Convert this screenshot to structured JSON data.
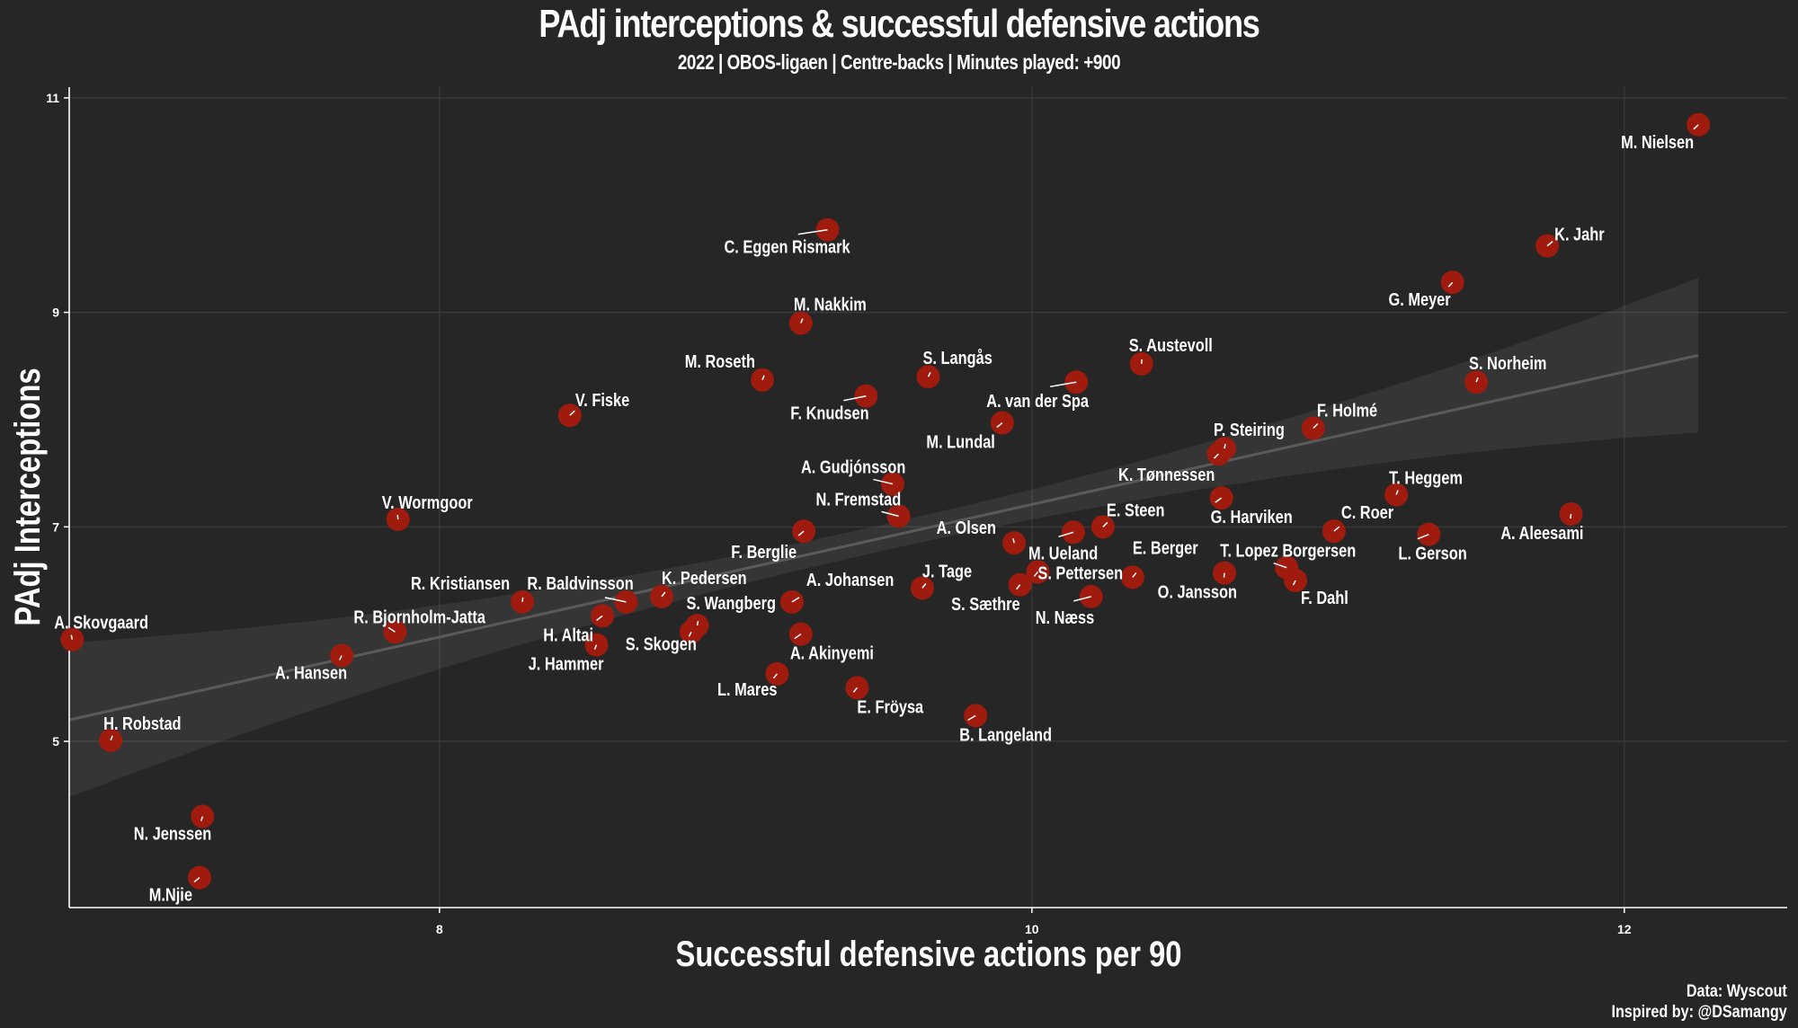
{
  "chart_data": {
    "type": "scatter",
    "title": "PAdj interceptions & successful defensive actions",
    "subtitle": "2022 | OBOS-ligaen | Centre-backs | Minutes played: +900",
    "xlabel": "Successful defensive actions per 90",
    "ylabel": "PAdj Interceptions",
    "xlim": [
      6.75,
      12.55
    ],
    "ylim": [
      3.45,
      11.1
    ],
    "x_ticks": [
      8,
      10,
      12
    ],
    "y_ticks": [
      5,
      7,
      9,
      11
    ],
    "grid": true,
    "marker_color": "#9e1b0e",
    "trendline": {
      "x": [
        6.75,
        12.25
      ],
      "y": [
        5.2,
        8.6
      ]
    },
    "points": [
      {
        "name": "M. Nielsen",
        "x": 12.25,
        "y": 10.75
      },
      {
        "name": "K. Jahr",
        "x": 11.74,
        "y": 9.62
      },
      {
        "name": "G. Meyer",
        "x": 11.42,
        "y": 9.28
      },
      {
        "name": "S. Norheim",
        "x": 11.5,
        "y": 8.35
      },
      {
        "name": "S. Austevoll",
        "x": 10.37,
        "y": 8.52
      },
      {
        "name": "A. van der Spa",
        "x": 10.15,
        "y": 8.35
      },
      {
        "name": "M. Lundal",
        "x": 9.9,
        "y": 7.97
      },
      {
        "name": "S. Langås",
        "x": 9.65,
        "y": 8.4
      },
      {
        "name": "F. Knudsen",
        "x": 9.44,
        "y": 8.22
      },
      {
        "name": "M. Roseth",
        "x": 9.09,
        "y": 8.37
      },
      {
        "name": "M. Nakkim",
        "x": 9.22,
        "y": 8.9
      },
      {
        "name": "C. Eggen Rismark",
        "x": 9.31,
        "y": 9.77
      },
      {
        "name": "V. Fiske",
        "x": 8.44,
        "y": 8.04
      },
      {
        "name": "P. Steiring",
        "x": 10.65,
        "y": 7.73
      },
      {
        "name": "F. Holmé",
        "x": 10.95,
        "y": 7.92
      },
      {
        "name": "K. Tønnessen",
        "x": 10.63,
        "y": 7.68
      },
      {
        "name": "T. Heggem",
        "x": 11.23,
        "y": 7.3
      },
      {
        "name": "A. Aleesami",
        "x": 11.82,
        "y": 7.12
      },
      {
        "name": "C. Roer",
        "x": 11.02,
        "y": 6.96
      },
      {
        "name": "L. Gerson",
        "x": 11.34,
        "y": 6.93
      },
      {
        "name": "G. Harviken",
        "x": 10.64,
        "y": 7.27
      },
      {
        "name": "T. Lopez Borgersen",
        "x": 10.86,
        "y": 6.62
      },
      {
        "name": "F. Dahl",
        "x": 10.89,
        "y": 6.5
      },
      {
        "name": "O. Jansson",
        "x": 10.65,
        "y": 6.57
      },
      {
        "name": "E. Steen",
        "x": 10.24,
        "y": 7.0
      },
      {
        "name": "M. Ueland",
        "x": 10.14,
        "y": 6.95
      },
      {
        "name": "E. Berger",
        "x": 10.34,
        "y": 6.53
      },
      {
        "name": "N. Næss",
        "x": 10.2,
        "y": 6.35
      },
      {
        "name": "S. Pettersen",
        "x": 10.02,
        "y": 6.58
      },
      {
        "name": "S. Sæthre",
        "x": 9.96,
        "y": 6.46
      },
      {
        "name": "A. Olsen",
        "x": 9.94,
        "y": 6.85
      },
      {
        "name": "J. Tage",
        "x": 9.63,
        "y": 6.43
      },
      {
        "name": "A. Gudjónsson",
        "x": 9.53,
        "y": 7.4
      },
      {
        "name": "N. Fremstad",
        "x": 9.55,
        "y": 7.1
      },
      {
        "name": "F. Berglie",
        "x": 9.23,
        "y": 6.96
      },
      {
        "name": "A. Johansen",
        "x": 9.19,
        "y": 6.3
      },
      {
        "name": "A. Akinyemi",
        "x": 9.22,
        "y": 6.0
      },
      {
        "name": "E. Fröysa",
        "x": 9.41,
        "y": 5.5
      },
      {
        "name": "B. Langeland",
        "x": 9.81,
        "y": 5.24
      },
      {
        "name": "L. Mares",
        "x": 9.14,
        "y": 5.63
      },
      {
        "name": "S. Wangberg",
        "x": 8.87,
        "y": 6.08
      },
      {
        "name": "S. Skogen",
        "x": 8.85,
        "y": 6.02
      },
      {
        "name": "K. Pedersen",
        "x": 8.75,
        "y": 6.35
      },
      {
        "name": "R. Baldvinsson",
        "x": 8.63,
        "y": 6.3
      },
      {
        "name": "R. Kristiansen",
        "x": 8.28,
        "y": 6.3
      },
      {
        "name": "H. Altai",
        "x": 8.55,
        "y": 6.17
      },
      {
        "name": "J. Hammer",
        "x": 8.53,
        "y": 5.9
      },
      {
        "name": "R. Bjornholm-Jatta",
        "x": 7.85,
        "y": 6.02
      },
      {
        "name": "V. Wormgoor",
        "x": 7.86,
        "y": 7.07
      },
      {
        "name": "A. Hansen",
        "x": 7.67,
        "y": 5.8
      },
      {
        "name": "A. Skovgaard",
        "x": 6.76,
        "y": 5.95
      },
      {
        "name": "H. Robstad",
        "x": 6.89,
        "y": 5.01
      },
      {
        "name": "N. Jenssen",
        "x": 7.2,
        "y": 4.3
      },
      {
        "name": "M.Njie",
        "x": 7.19,
        "y": 3.73
      }
    ]
  },
  "credits": {
    "source": "Data: Wyscout",
    "inspired": "Inspired by: @DSamangy"
  }
}
